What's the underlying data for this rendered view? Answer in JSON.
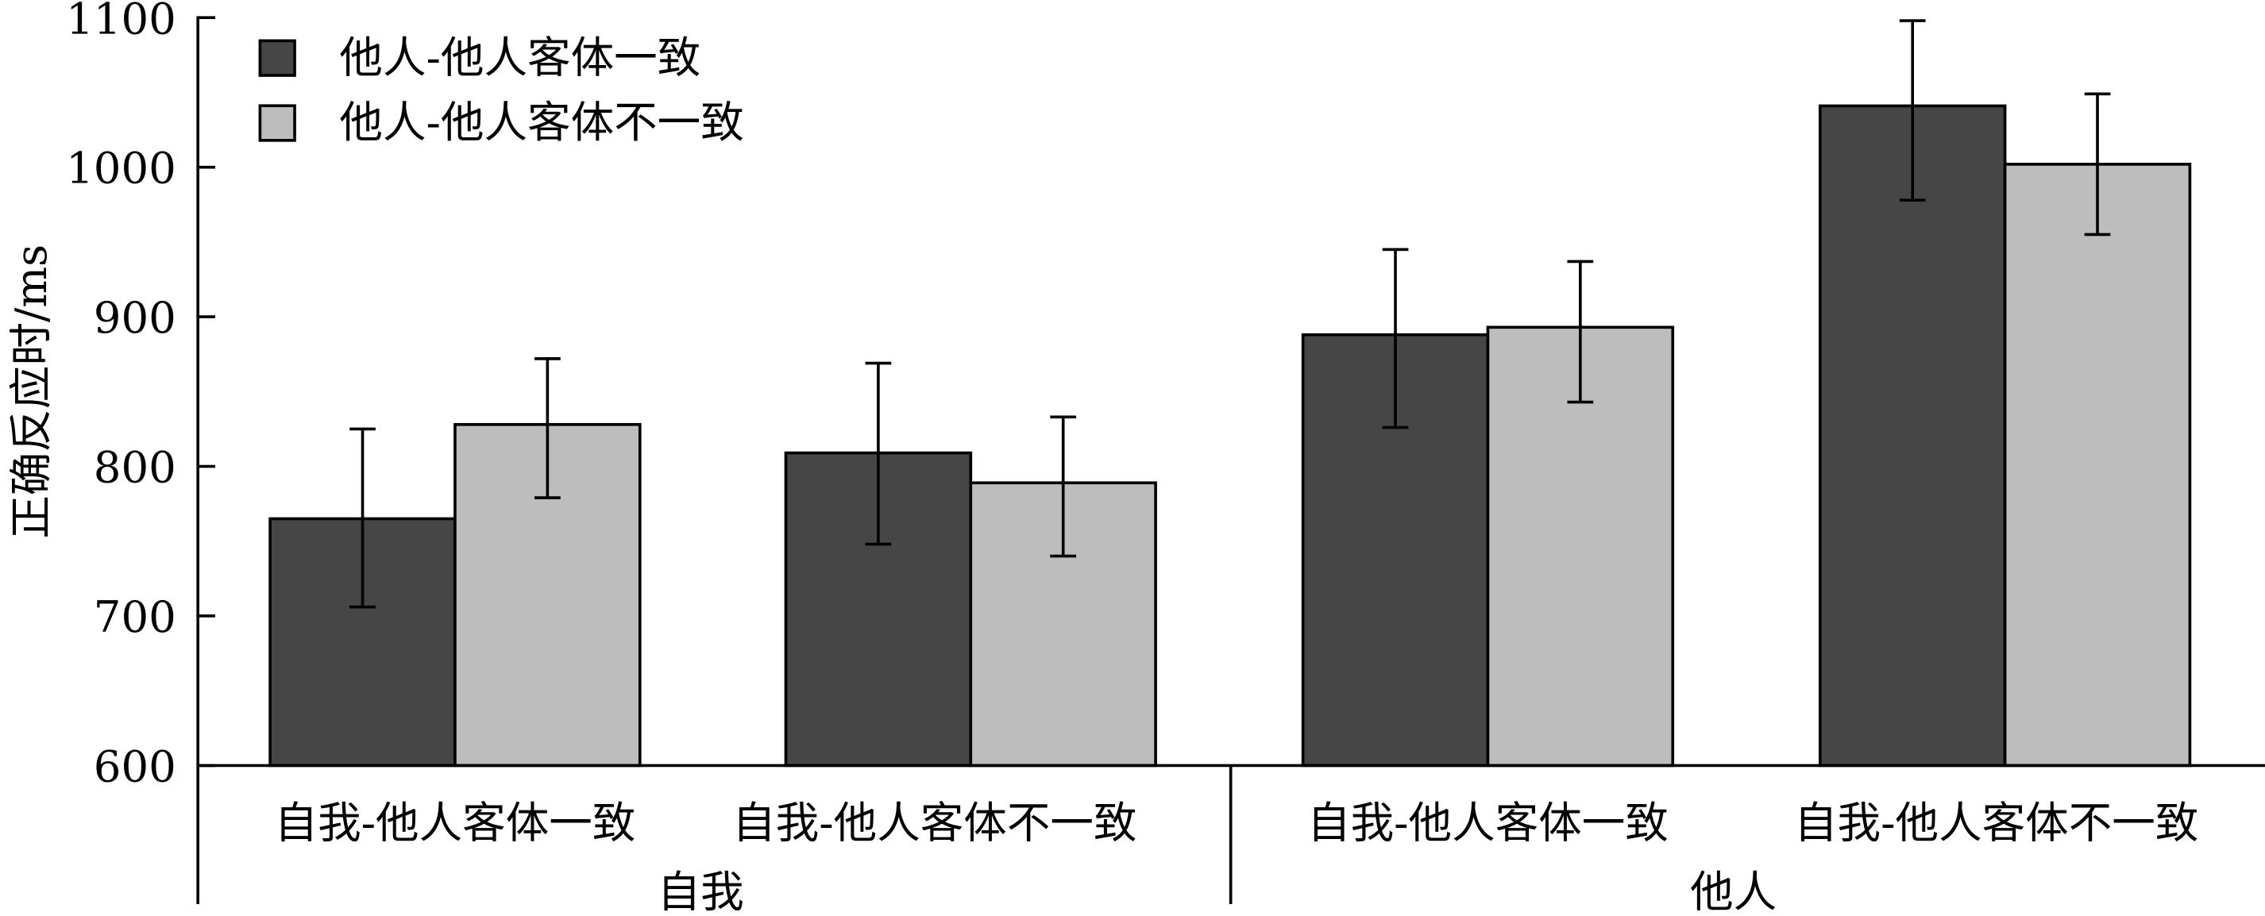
{
  "chart_data": {
    "type": "bar",
    "title": "",
    "ylabel": "正确反应时/ms",
    "xlabel": "",
    "ylim": [
      600,
      1100
    ],
    "yticks": [
      600,
      700,
      800,
      900,
      1000,
      1100
    ],
    "ytick_labels": [
      "600",
      "700",
      "800",
      "900",
      "1000",
      "1100"
    ],
    "categories": [
      "自我-他人客体一致",
      "自我-他人客体不一致",
      "自我-他人客体一致",
      "自我-他人客体不一致"
    ],
    "groups": [
      {
        "label": "自我",
        "span": [
          0,
          1
        ]
      },
      {
        "label": "他人",
        "span": [
          2,
          3
        ]
      }
    ],
    "legend_position": "top-left",
    "grid": false,
    "series": [
      {
        "name": "他人-他人客体一致",
        "color": "#464646",
        "values": [
          765,
          809,
          888,
          1041
        ],
        "error_low": [
          706,
          748,
          826,
          978
        ],
        "error_high": [
          825,
          869,
          945,
          1098
        ]
      },
      {
        "name": "他人-他人客体不一致",
        "color": "#bdbdbd",
        "values": [
          828,
          789,
          893,
          1002
        ],
        "error_low": [
          779,
          740,
          843,
          955
        ],
        "error_high": [
          872,
          833,
          937,
          1049
        ]
      }
    ]
  }
}
